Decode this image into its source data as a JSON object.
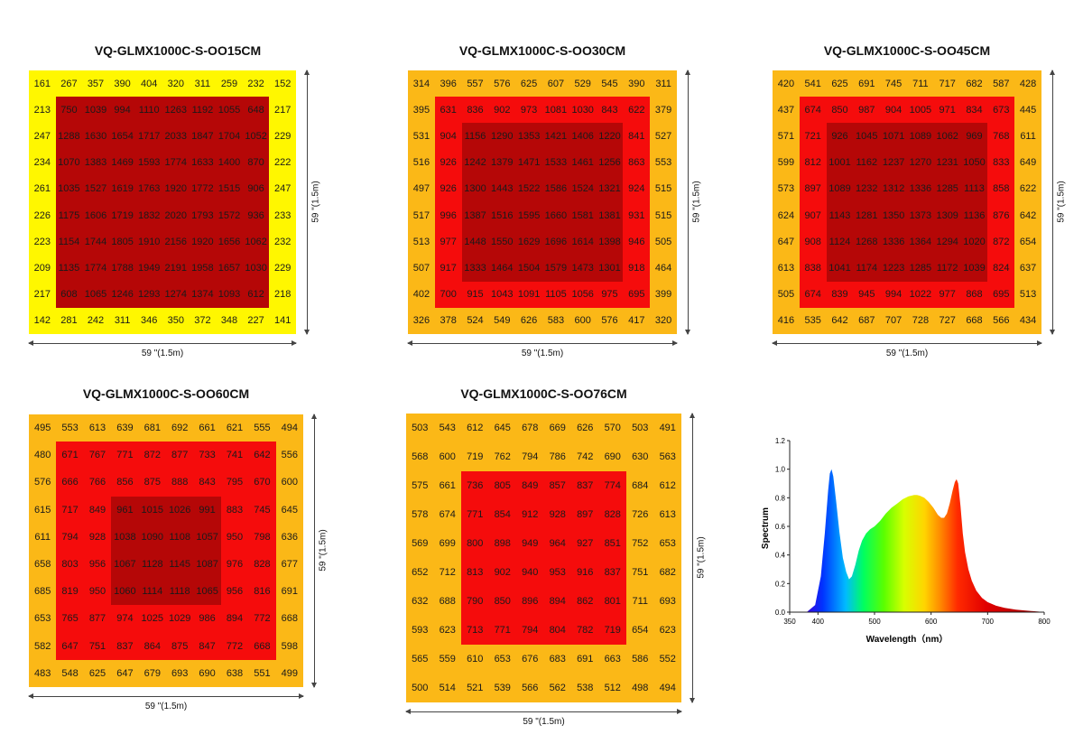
{
  "chart_data": [
    {
      "type": "heatmap",
      "title": "VQ-GLMX1000C-S-OO15CM",
      "xlabel": "59 \"(1.5m)",
      "ylabel": "59 \"(1.5m)",
      "rows": [
        [
          161,
          267,
          357,
          390,
          404,
          320,
          311,
          259,
          232,
          152
        ],
        [
          213,
          750,
          1039,
          994,
          1110,
          1263,
          1192,
          1055,
          648,
          217
        ],
        [
          247,
          1288,
          1630,
          1654,
          1717,
          2033,
          1847,
          1704,
          1052,
          229
        ],
        [
          234,
          1070,
          1383,
          1469,
          1593,
          1774,
          1633,
          1400,
          870,
          222
        ],
        [
          261,
          1035,
          1527,
          1619,
          1763,
          1920,
          1772,
          1515,
          906,
          247
        ],
        [
          226,
          1175,
          1606,
          1719,
          1832,
          2020,
          1793,
          1572,
          936,
          233
        ],
        [
          223,
          1154,
          1744,
          1805,
          1910,
          2156,
          1920,
          1656,
          1062,
          232
        ],
        [
          209,
          1135,
          1774,
          1788,
          1949,
          2191,
          1958,
          1657,
          1030,
          229
        ],
        [
          217,
          608,
          1065,
          1246,
          1293,
          1274,
          1374,
          1093,
          612,
          218
        ],
        [
          142,
          281,
          242,
          311,
          346,
          350,
          372,
          348,
          227,
          141
        ]
      ]
    },
    {
      "type": "heatmap",
      "title": "VQ-GLMX1000C-S-OO30CM",
      "xlabel": "59 \"(1.5m)",
      "ylabel": "59 \"(1.5m)",
      "rows": [
        [
          314,
          396,
          557,
          576,
          625,
          607,
          529,
          545,
          390,
          311
        ],
        [
          395,
          631,
          836,
          902,
          973,
          1081,
          1030,
          843,
          622,
          379
        ],
        [
          531,
          904,
          1156,
          1290,
          1353,
          1421,
          1406,
          1220,
          841,
          527
        ],
        [
          516,
          926,
          1242,
          1379,
          1471,
          1533,
          1461,
          1256,
          863,
          553
        ],
        [
          497,
          926,
          1300,
          1443,
          1522,
          1586,
          1524,
          1321,
          924,
          515
        ],
        [
          517,
          996,
          1387,
          1516,
          1595,
          1660,
          1581,
          1381,
          931,
          515
        ],
        [
          513,
          977,
          1448,
          1550,
          1629,
          1696,
          1614,
          1398,
          946,
          505
        ],
        [
          507,
          917,
          1333,
          1464,
          1504,
          1579,
          1473,
          1301,
          918,
          464
        ],
        [
          402,
          700,
          915,
          1043,
          1091,
          1105,
          1056,
          975,
          695,
          399
        ],
        [
          326,
          378,
          524,
          549,
          626,
          583,
          600,
          576,
          417,
          320
        ]
      ]
    },
    {
      "type": "heatmap",
      "title": "VQ-GLMX1000C-S-OO45CM",
      "xlabel": "59 \"(1.5m)",
      "ylabel": "59 \"(1.5m)",
      "rows": [
        [
          420,
          541,
          625,
          691,
          745,
          711,
          717,
          682,
          587,
          428
        ],
        [
          437,
          674,
          850,
          987,
          904,
          1005,
          971,
          834,
          673,
          445
        ],
        [
          571,
          721,
          926,
          1045,
          1071,
          1089,
          1062,
          969,
          768,
          611
        ],
        [
          599,
          812,
          1001,
          1162,
          1237,
          1270,
          1231,
          1050,
          833,
          649
        ],
        [
          573,
          897,
          1089,
          1232,
          1312,
          1336,
          1285,
          1113,
          858,
          622
        ],
        [
          624,
          907,
          1143,
          1281,
          1350,
          1373,
          1309,
          1136,
          876,
          642
        ],
        [
          647,
          908,
          1124,
          1268,
          1336,
          1364,
          1294,
          1020,
          872,
          654
        ],
        [
          613,
          838,
          1041,
          1174,
          1223,
          1285,
          1172,
          1039,
          824,
          637
        ],
        [
          505,
          674,
          839,
          945,
          994,
          1022,
          977,
          868,
          695,
          513
        ],
        [
          416,
          535,
          642,
          687,
          707,
          728,
          727,
          668,
          566,
          434
        ]
      ]
    },
    {
      "type": "heatmap",
      "title": "VQ-GLMX1000C-S-OO60CM",
      "xlabel": "59 \"(1.5m)",
      "ylabel": "59 \"(1.5m)",
      "rows": [
        [
          495,
          553,
          613,
          639,
          681,
          692,
          661,
          621,
          555,
          494
        ],
        [
          480,
          671,
          767,
          771,
          872,
          877,
          733,
          741,
          642,
          556
        ],
        [
          576,
          666,
          766,
          856,
          875,
          888,
          843,
          795,
          670,
          600
        ],
        [
          615,
          717,
          849,
          961,
          1015,
          1026,
          991,
          883,
          745,
          645
        ],
        [
          611,
          794,
          928,
          1038,
          1090,
          1108,
          1057,
          950,
          798,
          636
        ],
        [
          658,
          803,
          956,
          1067,
          1128,
          1145,
          1087,
          976,
          828,
          677
        ],
        [
          685,
          819,
          950,
          1060,
          1114,
          1118,
          1065,
          956,
          816,
          691
        ],
        [
          653,
          765,
          877,
          974,
          1025,
          1029,
          986,
          894,
          772,
          668
        ],
        [
          582,
          647,
          751,
          837,
          864,
          875,
          847,
          772,
          668,
          598
        ],
        [
          483,
          548,
          625,
          647,
          679,
          693,
          690,
          638,
          551,
          499
        ]
      ]
    },
    {
      "type": "heatmap",
      "title": "VQ-GLMX1000C-S-OO76CM",
      "xlabel": "59 \"(1.5m)",
      "ylabel": "59 \"(1.5m)",
      "rows": [
        [
          503,
          543,
          612,
          645,
          678,
          669,
          626,
          570,
          503,
          491
        ],
        [
          568,
          600,
          719,
          762,
          794,
          786,
          742,
          690,
          630,
          563
        ],
        [
          575,
          661,
          736,
          805,
          849,
          857,
          837,
          774,
          684,
          612
        ],
        [
          578,
          674,
          771,
          854,
          912,
          928,
          897,
          828,
          726,
          613
        ],
        [
          569,
          699,
          800,
          898,
          949,
          964,
          927,
          851,
          752,
          653
        ],
        [
          652,
          712,
          813,
          902,
          940,
          953,
          916,
          837,
          751,
          682
        ],
        [
          632,
          688,
          790,
          850,
          896,
          894,
          862,
          801,
          711,
          693
        ],
        [
          593,
          623,
          713,
          771,
          794,
          804,
          782,
          719,
          654,
          623
        ],
        [
          565,
          559,
          610,
          653,
          676,
          683,
          691,
          663,
          586,
          552
        ],
        [
          500,
          514,
          521,
          539,
          566,
          562,
          538,
          512,
          498,
          494
        ]
      ]
    },
    {
      "type": "area",
      "title": "",
      "xlabel": "Wavelength（nm）",
      "ylabel": "Spectrum",
      "xlim": [
        350,
        800
      ],
      "ylim": [
        0,
        1.2
      ],
      "xticks": [
        350,
        400,
        500,
        600,
        700,
        800
      ],
      "yticks": [
        0.0,
        0.2,
        0.4,
        0.6,
        0.8,
        1.0,
        1.2
      ],
      "x": [
        380,
        395,
        405,
        412,
        418,
        421,
        424,
        427,
        432,
        438,
        444,
        450,
        455,
        460,
        466,
        472,
        478,
        485,
        492,
        500,
        510,
        520,
        530,
        540,
        550,
        560,
        570,
        575,
        580,
        588,
        596,
        604,
        612,
        618,
        623,
        628,
        633,
        638,
        642,
        645,
        648,
        652,
        656,
        660,
        666,
        672,
        680,
        690,
        700,
        715,
        730,
        750,
        770,
        790,
        800
      ],
      "y": [
        0.0,
        0.05,
        0.25,
        0.55,
        0.85,
        0.97,
        1.0,
        0.95,
        0.78,
        0.56,
        0.38,
        0.28,
        0.23,
        0.25,
        0.33,
        0.43,
        0.5,
        0.55,
        0.58,
        0.6,
        0.64,
        0.69,
        0.73,
        0.76,
        0.79,
        0.81,
        0.82,
        0.82,
        0.815,
        0.8,
        0.77,
        0.73,
        0.68,
        0.66,
        0.66,
        0.69,
        0.76,
        0.85,
        0.91,
        0.93,
        0.9,
        0.74,
        0.55,
        0.42,
        0.3,
        0.22,
        0.15,
        0.1,
        0.07,
        0.045,
        0.03,
        0.018,
        0.01,
        0.004,
        0.0
      ]
    }
  ]
}
